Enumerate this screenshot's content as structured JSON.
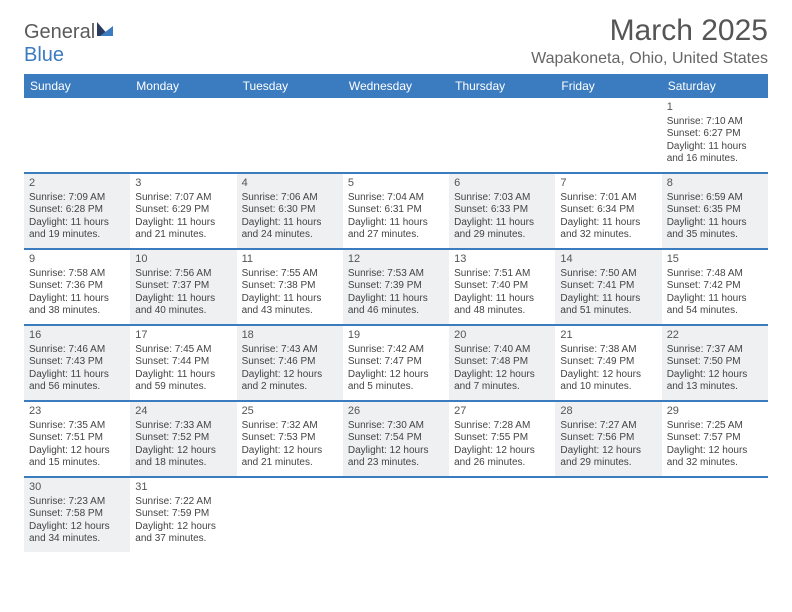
{
  "brand": {
    "part1": "General",
    "part2": "Blue"
  },
  "title": "March 2025",
  "location": "Wapakoneta, Ohio, United States",
  "colors": {
    "header_bg": "#3b7bbf",
    "header_text": "#ffffff",
    "shaded_bg": "#eef0f1",
    "border": "#3b7bbf",
    "text": "#444444",
    "title_text": "#555555"
  },
  "dow": [
    "Sunday",
    "Monday",
    "Tuesday",
    "Wednesday",
    "Thursday",
    "Friday",
    "Saturday"
  ],
  "weeks": [
    [
      {
        "empty": true
      },
      {
        "empty": true
      },
      {
        "empty": true
      },
      {
        "empty": true
      },
      {
        "empty": true
      },
      {
        "empty": true
      },
      {
        "n": "1",
        "sunrise": "Sunrise: 7:10 AM",
        "sunset": "Sunset: 6:27 PM",
        "daylight": "Daylight: 11 hours and 16 minutes."
      }
    ],
    [
      {
        "n": "2",
        "shaded": true,
        "sunrise": "Sunrise: 7:09 AM",
        "sunset": "Sunset: 6:28 PM",
        "daylight": "Daylight: 11 hours and 19 minutes."
      },
      {
        "n": "3",
        "sunrise": "Sunrise: 7:07 AM",
        "sunset": "Sunset: 6:29 PM",
        "daylight": "Daylight: 11 hours and 21 minutes."
      },
      {
        "n": "4",
        "shaded": true,
        "sunrise": "Sunrise: 7:06 AM",
        "sunset": "Sunset: 6:30 PM",
        "daylight": "Daylight: 11 hours and 24 minutes."
      },
      {
        "n": "5",
        "sunrise": "Sunrise: 7:04 AM",
        "sunset": "Sunset: 6:31 PM",
        "daylight": "Daylight: 11 hours and 27 minutes."
      },
      {
        "n": "6",
        "shaded": true,
        "sunrise": "Sunrise: 7:03 AM",
        "sunset": "Sunset: 6:33 PM",
        "daylight": "Daylight: 11 hours and 29 minutes."
      },
      {
        "n": "7",
        "sunrise": "Sunrise: 7:01 AM",
        "sunset": "Sunset: 6:34 PM",
        "daylight": "Daylight: 11 hours and 32 minutes."
      },
      {
        "n": "8",
        "shaded": true,
        "sunrise": "Sunrise: 6:59 AM",
        "sunset": "Sunset: 6:35 PM",
        "daylight": "Daylight: 11 hours and 35 minutes."
      }
    ],
    [
      {
        "n": "9",
        "sunrise": "Sunrise: 7:58 AM",
        "sunset": "Sunset: 7:36 PM",
        "daylight": "Daylight: 11 hours and 38 minutes."
      },
      {
        "n": "10",
        "shaded": true,
        "sunrise": "Sunrise: 7:56 AM",
        "sunset": "Sunset: 7:37 PM",
        "daylight": "Daylight: 11 hours and 40 minutes."
      },
      {
        "n": "11",
        "sunrise": "Sunrise: 7:55 AM",
        "sunset": "Sunset: 7:38 PM",
        "daylight": "Daylight: 11 hours and 43 minutes."
      },
      {
        "n": "12",
        "shaded": true,
        "sunrise": "Sunrise: 7:53 AM",
        "sunset": "Sunset: 7:39 PM",
        "daylight": "Daylight: 11 hours and 46 minutes."
      },
      {
        "n": "13",
        "sunrise": "Sunrise: 7:51 AM",
        "sunset": "Sunset: 7:40 PM",
        "daylight": "Daylight: 11 hours and 48 minutes."
      },
      {
        "n": "14",
        "shaded": true,
        "sunrise": "Sunrise: 7:50 AM",
        "sunset": "Sunset: 7:41 PM",
        "daylight": "Daylight: 11 hours and 51 minutes."
      },
      {
        "n": "15",
        "sunrise": "Sunrise: 7:48 AM",
        "sunset": "Sunset: 7:42 PM",
        "daylight": "Daylight: 11 hours and 54 minutes."
      }
    ],
    [
      {
        "n": "16",
        "shaded": true,
        "sunrise": "Sunrise: 7:46 AM",
        "sunset": "Sunset: 7:43 PM",
        "daylight": "Daylight: 11 hours and 56 minutes."
      },
      {
        "n": "17",
        "sunrise": "Sunrise: 7:45 AM",
        "sunset": "Sunset: 7:44 PM",
        "daylight": "Daylight: 11 hours and 59 minutes."
      },
      {
        "n": "18",
        "shaded": true,
        "sunrise": "Sunrise: 7:43 AM",
        "sunset": "Sunset: 7:46 PM",
        "daylight": "Daylight: 12 hours and 2 minutes."
      },
      {
        "n": "19",
        "sunrise": "Sunrise: 7:42 AM",
        "sunset": "Sunset: 7:47 PM",
        "daylight": "Daylight: 12 hours and 5 minutes."
      },
      {
        "n": "20",
        "shaded": true,
        "sunrise": "Sunrise: 7:40 AM",
        "sunset": "Sunset: 7:48 PM",
        "daylight": "Daylight: 12 hours and 7 minutes."
      },
      {
        "n": "21",
        "sunrise": "Sunrise: 7:38 AM",
        "sunset": "Sunset: 7:49 PM",
        "daylight": "Daylight: 12 hours and 10 minutes."
      },
      {
        "n": "22",
        "shaded": true,
        "sunrise": "Sunrise: 7:37 AM",
        "sunset": "Sunset: 7:50 PM",
        "daylight": "Daylight: 12 hours and 13 minutes."
      }
    ],
    [
      {
        "n": "23",
        "sunrise": "Sunrise: 7:35 AM",
        "sunset": "Sunset: 7:51 PM",
        "daylight": "Daylight: 12 hours and 15 minutes."
      },
      {
        "n": "24",
        "shaded": true,
        "sunrise": "Sunrise: 7:33 AM",
        "sunset": "Sunset: 7:52 PM",
        "daylight": "Daylight: 12 hours and 18 minutes."
      },
      {
        "n": "25",
        "sunrise": "Sunrise: 7:32 AM",
        "sunset": "Sunset: 7:53 PM",
        "daylight": "Daylight: 12 hours and 21 minutes."
      },
      {
        "n": "26",
        "shaded": true,
        "sunrise": "Sunrise: 7:30 AM",
        "sunset": "Sunset: 7:54 PM",
        "daylight": "Daylight: 12 hours and 23 minutes."
      },
      {
        "n": "27",
        "sunrise": "Sunrise: 7:28 AM",
        "sunset": "Sunset: 7:55 PM",
        "daylight": "Daylight: 12 hours and 26 minutes."
      },
      {
        "n": "28",
        "shaded": true,
        "sunrise": "Sunrise: 7:27 AM",
        "sunset": "Sunset: 7:56 PM",
        "daylight": "Daylight: 12 hours and 29 minutes."
      },
      {
        "n": "29",
        "sunrise": "Sunrise: 7:25 AM",
        "sunset": "Sunset: 7:57 PM",
        "daylight": "Daylight: 12 hours and 32 minutes."
      }
    ],
    [
      {
        "n": "30",
        "shaded": true,
        "sunrise": "Sunrise: 7:23 AM",
        "sunset": "Sunset: 7:58 PM",
        "daylight": "Daylight: 12 hours and 34 minutes."
      },
      {
        "n": "31",
        "sunrise": "Sunrise: 7:22 AM",
        "sunset": "Sunset: 7:59 PM",
        "daylight": "Daylight: 12 hours and 37 minutes."
      },
      {
        "empty": true
      },
      {
        "empty": true
      },
      {
        "empty": true
      },
      {
        "empty": true
      },
      {
        "empty": true
      }
    ]
  ]
}
